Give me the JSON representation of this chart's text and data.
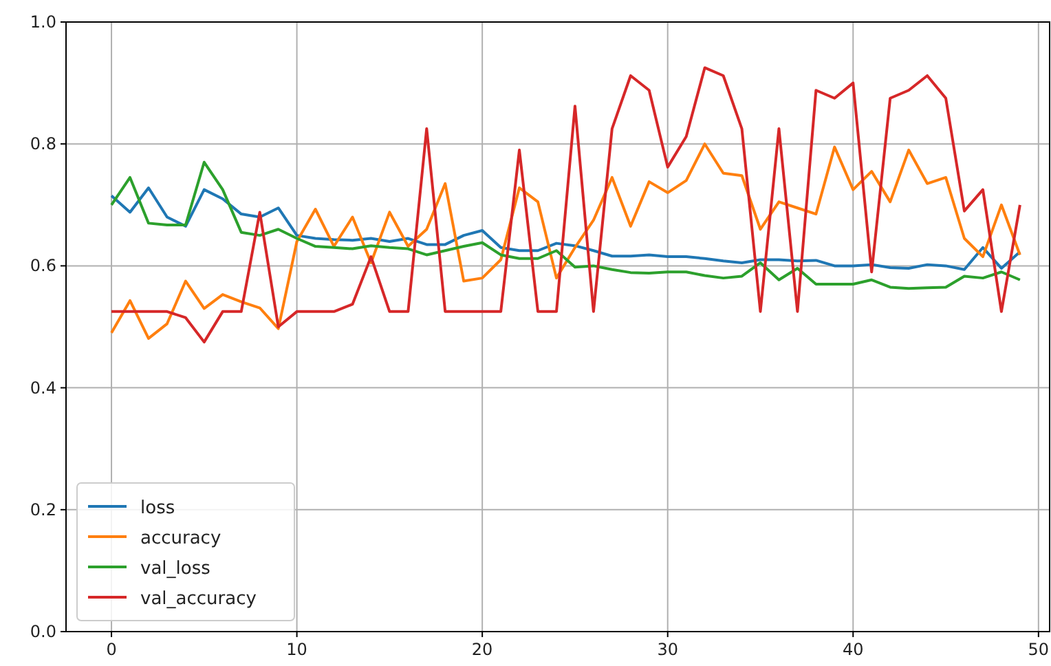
{
  "chart_data": {
    "type": "line",
    "x": [
      0,
      1,
      2,
      3,
      4,
      5,
      6,
      7,
      8,
      9,
      10,
      11,
      12,
      13,
      14,
      15,
      16,
      17,
      18,
      19,
      20,
      21,
      22,
      23,
      24,
      25,
      26,
      27,
      28,
      29,
      30,
      31,
      32,
      33,
      34,
      35,
      36,
      37,
      38,
      39,
      40,
      41,
      42,
      43,
      44,
      45,
      46,
      47,
      48,
      49
    ],
    "series": [
      {
        "name": "loss",
        "color": "#1f77b4",
        "values": [
          0.715,
          0.688,
          0.728,
          0.68,
          0.665,
          0.725,
          0.71,
          0.685,
          0.68,
          0.695,
          0.65,
          0.645,
          0.643,
          0.642,
          0.645,
          0.64,
          0.645,
          0.635,
          0.635,
          0.65,
          0.658,
          0.63,
          0.625,
          0.625,
          0.637,
          0.633,
          0.625,
          0.616,
          0.616,
          0.618,
          0.615,
          0.615,
          0.612,
          0.608,
          0.605,
          0.61,
          0.61,
          0.608,
          0.609,
          0.6,
          0.6,
          0.602,
          0.597,
          0.596,
          0.602,
          0.6,
          0.594,
          0.63,
          0.596,
          0.623
        ]
      },
      {
        "name": "accuracy",
        "color": "#ff7f0e",
        "values": [
          0.49,
          0.543,
          0.481,
          0.505,
          0.575,
          0.53,
          0.553,
          0.541,
          0.531,
          0.497,
          0.64,
          0.693,
          0.632,
          0.68,
          0.605,
          0.688,
          0.632,
          0.66,
          0.735,
          0.575,
          0.58,
          0.61,
          0.728,
          0.705,
          0.58,
          0.63,
          0.675,
          0.745,
          0.665,
          0.738,
          0.72,
          0.74,
          0.8,
          0.752,
          0.748,
          0.66,
          0.705,
          0.695,
          0.685,
          0.795,
          0.725,
          0.755,
          0.705,
          0.79,
          0.735,
          0.745,
          0.645,
          0.615,
          0.7,
          0.618
        ]
      },
      {
        "name": "val_loss",
        "color": "#2ca02c",
        "values": [
          0.7,
          0.745,
          0.67,
          0.667,
          0.667,
          0.77,
          0.725,
          0.655,
          0.65,
          0.66,
          0.645,
          0.632,
          0.63,
          0.628,
          0.633,
          0.63,
          0.628,
          0.618,
          0.625,
          0.632,
          0.638,
          0.618,
          0.612,
          0.612,
          0.625,
          0.598,
          0.6,
          0.594,
          0.589,
          0.588,
          0.59,
          0.59,
          0.584,
          0.58,
          0.583,
          0.605,
          0.577,
          0.596,
          0.57,
          0.57,
          0.57,
          0.577,
          0.565,
          0.563,
          0.564,
          0.565,
          0.583,
          0.58,
          0.59,
          0.577
        ]
      },
      {
        "name": "val_accuracy",
        "color": "#d62728",
        "values": [
          0.525,
          0.525,
          0.525,
          0.525,
          0.515,
          0.475,
          0.525,
          0.525,
          0.688,
          0.5,
          0.525,
          0.525,
          0.525,
          0.537,
          0.615,
          0.525,
          0.525,
          0.825,
          0.525,
          0.525,
          0.525,
          0.525,
          0.79,
          0.525,
          0.525,
          0.862,
          0.525,
          0.825,
          0.912,
          0.888,
          0.762,
          0.812,
          0.925,
          0.912,
          0.825,
          0.525,
          0.825,
          0.525,
          0.888,
          0.875,
          0.9,
          0.59,
          0.875,
          0.888,
          0.912,
          0.875,
          0.69,
          0.725,
          0.525,
          0.7
        ]
      }
    ],
    "xlim": [
      -2.45,
      50.6
    ],
    "ylim": [
      0,
      1
    ],
    "xticks": [
      0,
      10,
      20,
      30,
      40,
      50
    ],
    "yticks": [
      {
        "value": 0,
        "label": "0.0"
      },
      {
        "value": 0.2,
        "label": "0.2"
      },
      {
        "value": 0.4,
        "label": "0.4"
      },
      {
        "value": 0.6,
        "label": "0.6"
      },
      {
        "value": 0.8,
        "label": "0.8"
      },
      {
        "value": 1,
        "label": "1.0"
      }
    ],
    "grid": true,
    "legend": "bottom left"
  }
}
